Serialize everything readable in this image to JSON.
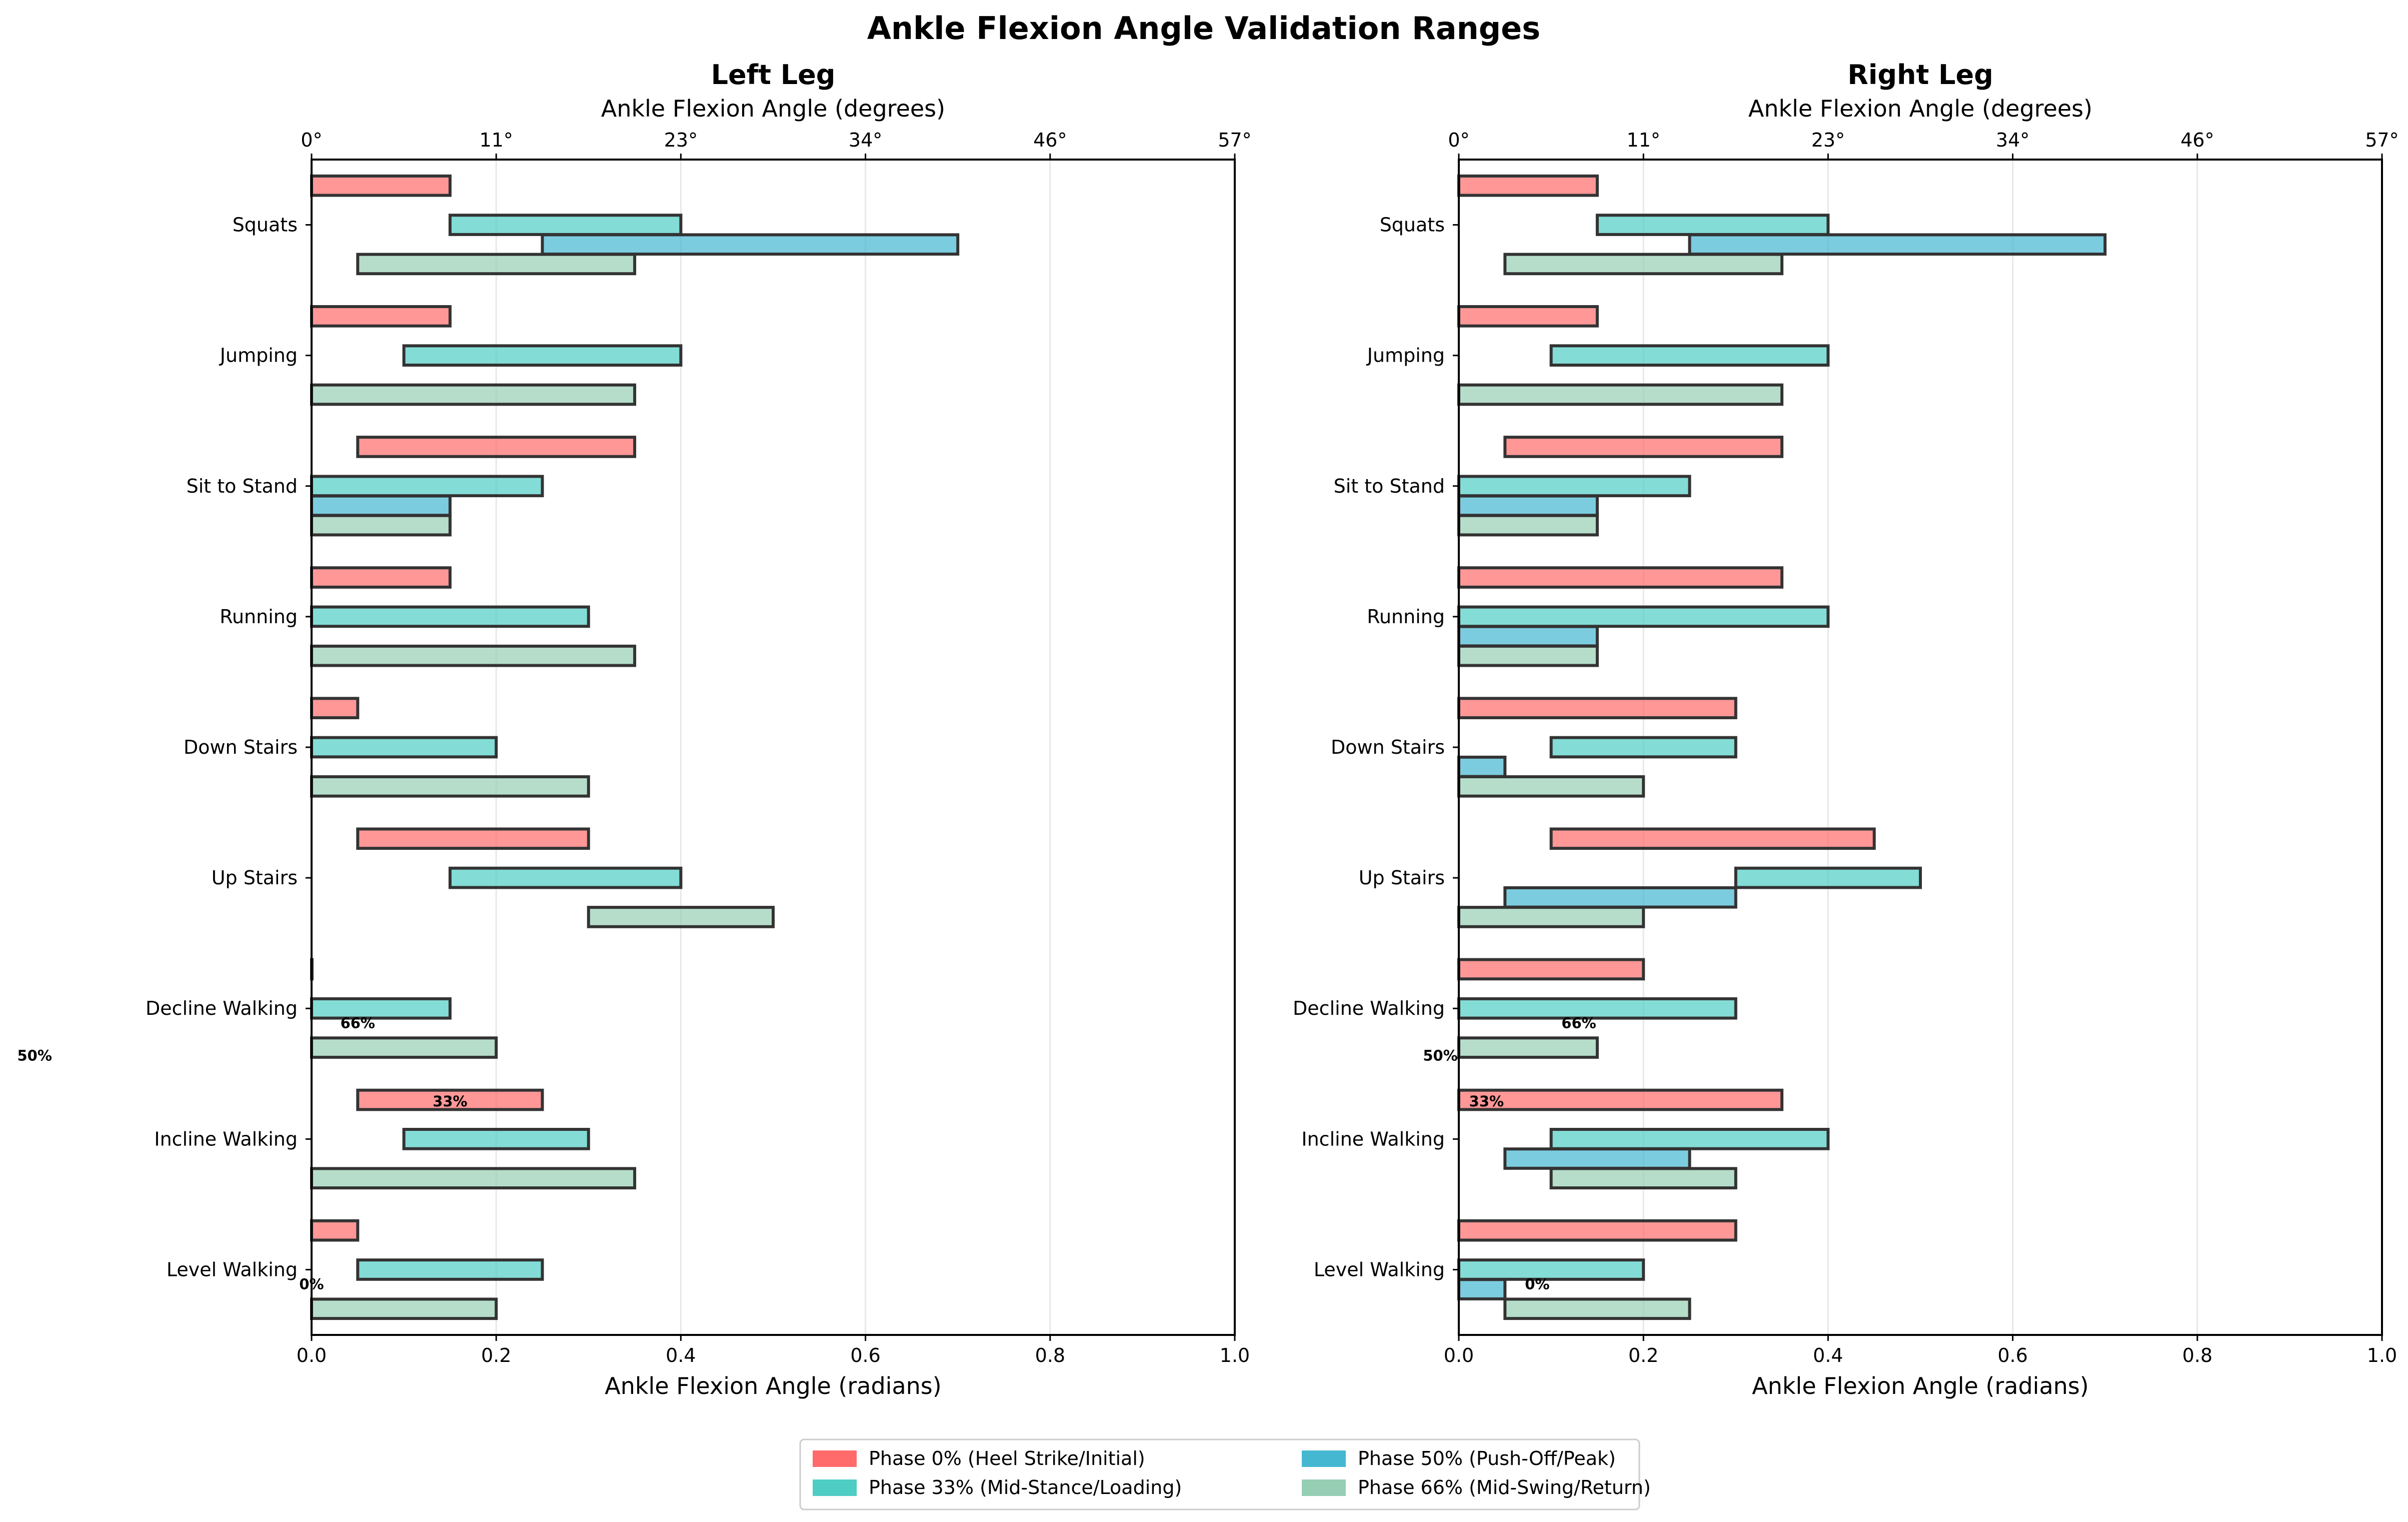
{
  "chart_data": {
    "type": "bar",
    "orientation": "horizontal",
    "title": "Ankle Flexion Angle Validation Ranges",
    "xlabel": "Ankle Flexion Angle (radians)",
    "secondary_xlabel": "Ankle Flexion Angle (degrees)",
    "xlim": [
      0,
      1
    ],
    "xticks": [
      "0.0",
      "0.2",
      "0.4",
      "0.6",
      "0.8",
      "1.0"
    ],
    "secondary_xticks": [
      "0°",
      "11°",
      "23°",
      "34°",
      "46°",
      "57°"
    ],
    "grid": "vertical",
    "categories": [
      "Squats",
      "Jumping",
      "Sit to Stand",
      "Running",
      "Down Stairs",
      "Up Stairs",
      "Decline Walking",
      "Incline Walking",
      "Level Walking"
    ],
    "phases": [
      {
        "key": "p0",
        "name": "Phase 0% (Heel Strike/Initial)",
        "color": "#ff6b6b"
      },
      {
        "key": "p33",
        "name": "Phase 33% (Mid-Stance/Loading)",
        "color": "#4ecdc4"
      },
      {
        "key": "p50",
        "name": "Phase 50% (Push-Off/Peak)",
        "color": "#45b7d1"
      },
      {
        "key": "p66",
        "name": "Phase 66% (Mid-Swing/Return)",
        "color": "#96ceb4"
      }
    ],
    "panels": [
      {
        "title": "Left Leg",
        "ranges": {
          "Squats": {
            "p0": [
              0.0,
              0.15
            ],
            "p33": [
              0.15,
              0.4
            ],
            "p50": [
              0.25,
              0.7
            ],
            "p66": [
              0.05,
              0.35
            ]
          },
          "Jumping": {
            "p0": [
              0.0,
              0.15
            ],
            "p33": [
              0.1,
              0.4
            ],
            "p66": [
              0.0,
              0.35
            ]
          },
          "Sit to Stand": {
            "p0": [
              0.05,
              0.35
            ],
            "p33": [
              0.0,
              0.25
            ],
            "p50": [
              0.0,
              0.15
            ],
            "p66": [
              0.0,
              0.15
            ]
          },
          "Running": {
            "p0": [
              0.0,
              0.15
            ],
            "p33": [
              0.0,
              0.3
            ],
            "p66": [
              0.0,
              0.35
            ]
          },
          "Down Stairs": {
            "p0": [
              0.0,
              0.05
            ],
            "p33": [
              0.0,
              0.2
            ],
            "p66": [
              0.0,
              0.3
            ]
          },
          "Up Stairs": {
            "p0": [
              0.05,
              0.3
            ],
            "p33": [
              0.15,
              0.4
            ],
            "p66": [
              0.3,
              0.5
            ]
          },
          "Decline Walking": {
            "p0": [
              0.0,
              0.0
            ],
            "p33": [
              0.0,
              0.15
            ],
            "p66": [
              0.0,
              0.2
            ]
          },
          "Incline Walking": {
            "p0": [
              0.05,
              0.25
            ],
            "p33": [
              0.1,
              0.3
            ],
            "p66": [
              0.0,
              0.35
            ]
          },
          "Level Walking": {
            "p0": [
              0.0,
              0.05
            ],
            "p33": [
              0.05,
              0.25
            ],
            "p66": [
              0.0,
              0.2
            ]
          }
        },
        "annotations": [
          {
            "text": "66%",
            "x": 0.05,
            "category": "Level Walking",
            "offset": 1.85
          },
          {
            "text": "50%",
            "x": -0.3,
            "category": "Level Walking",
            "offset": 1.6
          },
          {
            "text": "33%",
            "x": 0.15,
            "category": "Level Walking",
            "offset": 1.25
          },
          {
            "text": "0%",
            "x": 0.0,
            "category": "Level Walking",
            "offset": -0.15
          }
        ]
      },
      {
        "title": "Right Leg",
        "ranges": {
          "Squats": {
            "p0": [
              0.0,
              0.15
            ],
            "p33": [
              0.15,
              0.4
            ],
            "p50": [
              0.25,
              0.7
            ],
            "p66": [
              0.05,
              0.35
            ]
          },
          "Jumping": {
            "p0": [
              0.0,
              0.15
            ],
            "p33": [
              0.1,
              0.4
            ],
            "p66": [
              0.0,
              0.35
            ]
          },
          "Sit to Stand": {
            "p0": [
              0.05,
              0.35
            ],
            "p33": [
              0.0,
              0.25
            ],
            "p50": [
              0.0,
              0.15
            ],
            "p66": [
              0.0,
              0.15
            ]
          },
          "Running": {
            "p0": [
              0.0,
              0.35
            ],
            "p33": [
              0.0,
              0.4
            ],
            "p50": [
              0.0,
              0.15
            ],
            "p66": [
              0.0,
              0.15
            ]
          },
          "Down Stairs": {
            "p0": [
              0.0,
              0.3
            ],
            "p33": [
              0.1,
              0.3
            ],
            "p50": [
              0.0,
              0.05
            ],
            "p66": [
              0.0,
              0.2
            ]
          },
          "Up Stairs": {
            "p0": [
              0.1,
              0.45
            ],
            "p33": [
              0.3,
              0.5
            ],
            "p50": [
              0.05,
              0.3
            ],
            "p66": [
              0.0,
              0.2
            ]
          },
          "Decline Walking": {
            "p0": [
              0.0,
              0.2
            ],
            "p33": [
              0.0,
              0.3
            ],
            "p66": [
              0.0,
              0.15
            ]
          },
          "Incline Walking": {
            "p0": [
              0.0,
              0.35
            ],
            "p33": [
              0.1,
              0.4
            ],
            "p50": [
              0.05,
              0.25
            ],
            "p66": [
              0.1,
              0.3
            ]
          },
          "Level Walking": {
            "p0": [
              0.0,
              0.3
            ],
            "p33": [
              0.0,
              0.2
            ],
            "p50": [
              0.0,
              0.05
            ],
            "p66": [
              0.05,
              0.25
            ]
          }
        },
        "annotations": [
          {
            "text": "66%",
            "x": 0.13,
            "category": "Level Walking",
            "offset": 1.85
          },
          {
            "text": "50%",
            "x": -0.02,
            "category": "Level Walking",
            "offset": 1.6
          },
          {
            "text": "33%",
            "x": 0.03,
            "category": "Level Walking",
            "offset": 1.25
          },
          {
            "text": "0%",
            "x": 0.085,
            "category": "Level Walking",
            "offset": -0.15
          }
        ]
      }
    ],
    "legend": {
      "position": "bottom-center",
      "columns": 2
    }
  }
}
